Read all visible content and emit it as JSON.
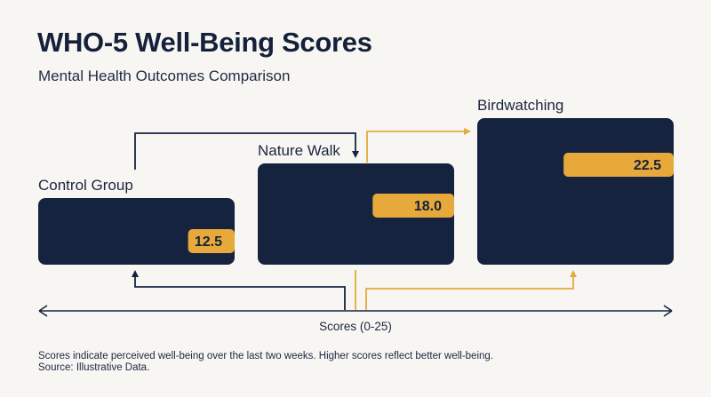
{
  "title": "WHO-5 Well-Being Scores",
  "subtitle": "Mental Health Outcomes Comparison",
  "colors": {
    "background": "#f7f6f2",
    "card": "#15233f",
    "bar": "#e6a93a",
    "arrow_navy": "#15233f",
    "arrow_gold": "#e6a93a"
  },
  "chart_data": {
    "type": "bar",
    "categories": [
      "Control Group",
      "Nature Walk",
      "Birdwatching"
    ],
    "values": [
      12.5,
      18.0,
      22.5
    ],
    "value_labels": [
      "12.5",
      "18.0",
      "22.5"
    ],
    "xlabel": "Scores (0-25)",
    "ylabel": "",
    "xlim": [
      0,
      25
    ]
  },
  "footnote": {
    "line1": "Scores indicate perceived well-being over the last two weeks. Higher scores reflect better well-being.",
    "line2": "Source: Illustrative Data."
  }
}
